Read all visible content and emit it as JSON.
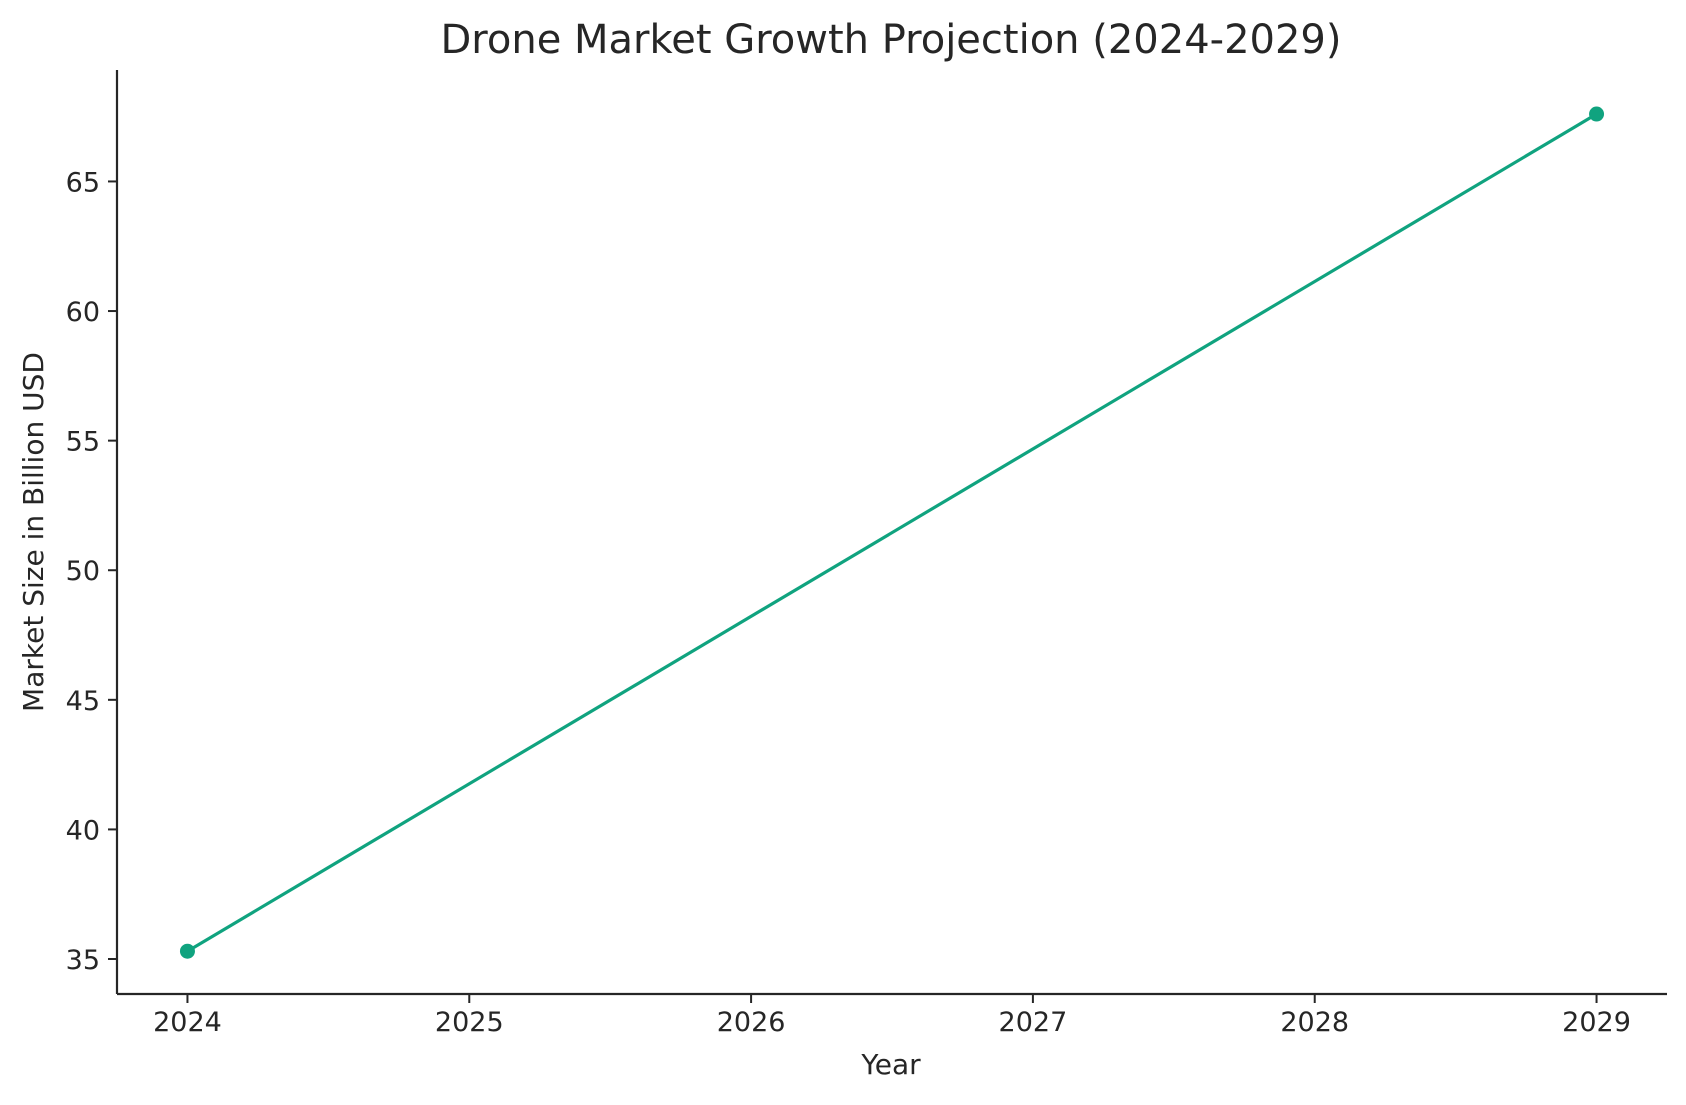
{
  "chart_data": {
    "type": "line",
    "title": "Drone Market Growth Projection (2024-2029)",
    "xlabel": "Year",
    "ylabel": "Market Size in Billion USD",
    "x": [
      2024,
      2029
    ],
    "series": [
      {
        "values": [
          35.3,
          67.6
        ],
        "color": "#10a37f",
        "marker": "circle"
      }
    ],
    "xticks": [
      2024,
      2025,
      2026,
      2027,
      2028,
      2029
    ],
    "yticks": [
      35,
      40,
      45,
      50,
      55,
      60,
      65
    ],
    "xlim": [
      2023.75,
      2029.25
    ],
    "ylim": [
      33.65,
      69.3
    ],
    "grid": false,
    "legend": "none"
  }
}
